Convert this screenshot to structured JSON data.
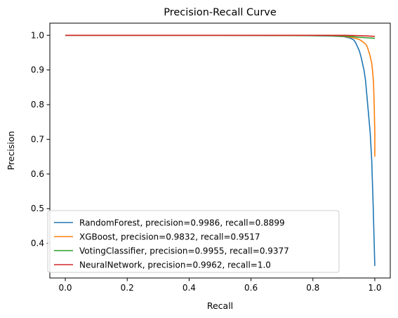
{
  "chart_data": {
    "type": "line",
    "title": "Precision-Recall Curve",
    "xlabel": "Recall",
    "ylabel": "Precision",
    "xlim": [
      -0.05,
      1.05
    ],
    "ylim": [
      0.3,
      1.035
    ],
    "xticks": [
      0.0,
      0.2,
      0.4,
      0.6,
      0.8,
      1.0
    ],
    "xtick_labels": [
      "0.0",
      "0.2",
      "0.4",
      "0.6",
      "0.8",
      "1.0"
    ],
    "yticks": [
      0.4,
      0.5,
      0.6,
      0.7,
      0.8,
      0.9,
      1.0
    ],
    "ytick_labels": [
      "0.4",
      "0.5",
      "0.6",
      "0.7",
      "0.8",
      "0.9",
      "1.0"
    ],
    "grid": false,
    "legend_position": "lower-left",
    "series": [
      {
        "name": "RandomForest, precision=0.9986, recall=0.8899",
        "color": "#1f77b4",
        "x": [
          0.0,
          0.5,
          0.8,
          0.86,
          0.9,
          0.92,
          0.93,
          0.935,
          0.94,
          0.945,
          0.95,
          0.955,
          0.96,
          0.965,
          0.97,
          0.975,
          0.98,
          0.985,
          0.99,
          0.995,
          1.0
        ],
        "y": [
          1.0,
          1.0,
          0.999,
          0.998,
          0.996,
          0.992,
          0.988,
          0.983,
          0.975,
          0.965,
          0.955,
          0.94,
          0.92,
          0.9,
          0.87,
          0.82,
          0.77,
          0.72,
          0.64,
          0.5,
          0.335
        ]
      },
      {
        "name": "XGBoost, precision=0.9832, recall=0.9517",
        "color": "#ff7f0e",
        "x": [
          0.0,
          0.5,
          0.85,
          0.9,
          0.93,
          0.95,
          0.96,
          0.97,
          0.975,
          0.98,
          0.985,
          0.99,
          0.993,
          0.996,
          0.998,
          1.0,
          1.0
        ],
        "y": [
          1.0,
          1.0,
          0.999,
          0.997,
          0.993,
          0.988,
          0.982,
          0.975,
          0.968,
          0.955,
          0.94,
          0.92,
          0.895,
          0.86,
          0.8,
          0.72,
          0.65
        ]
      },
      {
        "name": "VotingClassifier, precision=0.9955, recall=0.9377",
        "color": "#2ca02c",
        "x": [
          0.0,
          0.5,
          0.85,
          0.9,
          0.93,
          0.95,
          0.97,
          0.99,
          1.0
        ],
        "y": [
          1.0,
          1.0,
          0.999,
          0.998,
          0.996,
          0.994,
          0.993,
          0.992,
          0.991
        ]
      },
      {
        "name": "NeuralNetwork, precision=0.9962, recall=1.0",
        "color": "#d62728",
        "x": [
          0.0,
          0.5,
          0.9,
          0.95,
          0.98,
          1.0
        ],
        "y": [
          1.0,
          1.0,
          1.0,
          0.999,
          0.998,
          0.997
        ]
      }
    ]
  }
}
